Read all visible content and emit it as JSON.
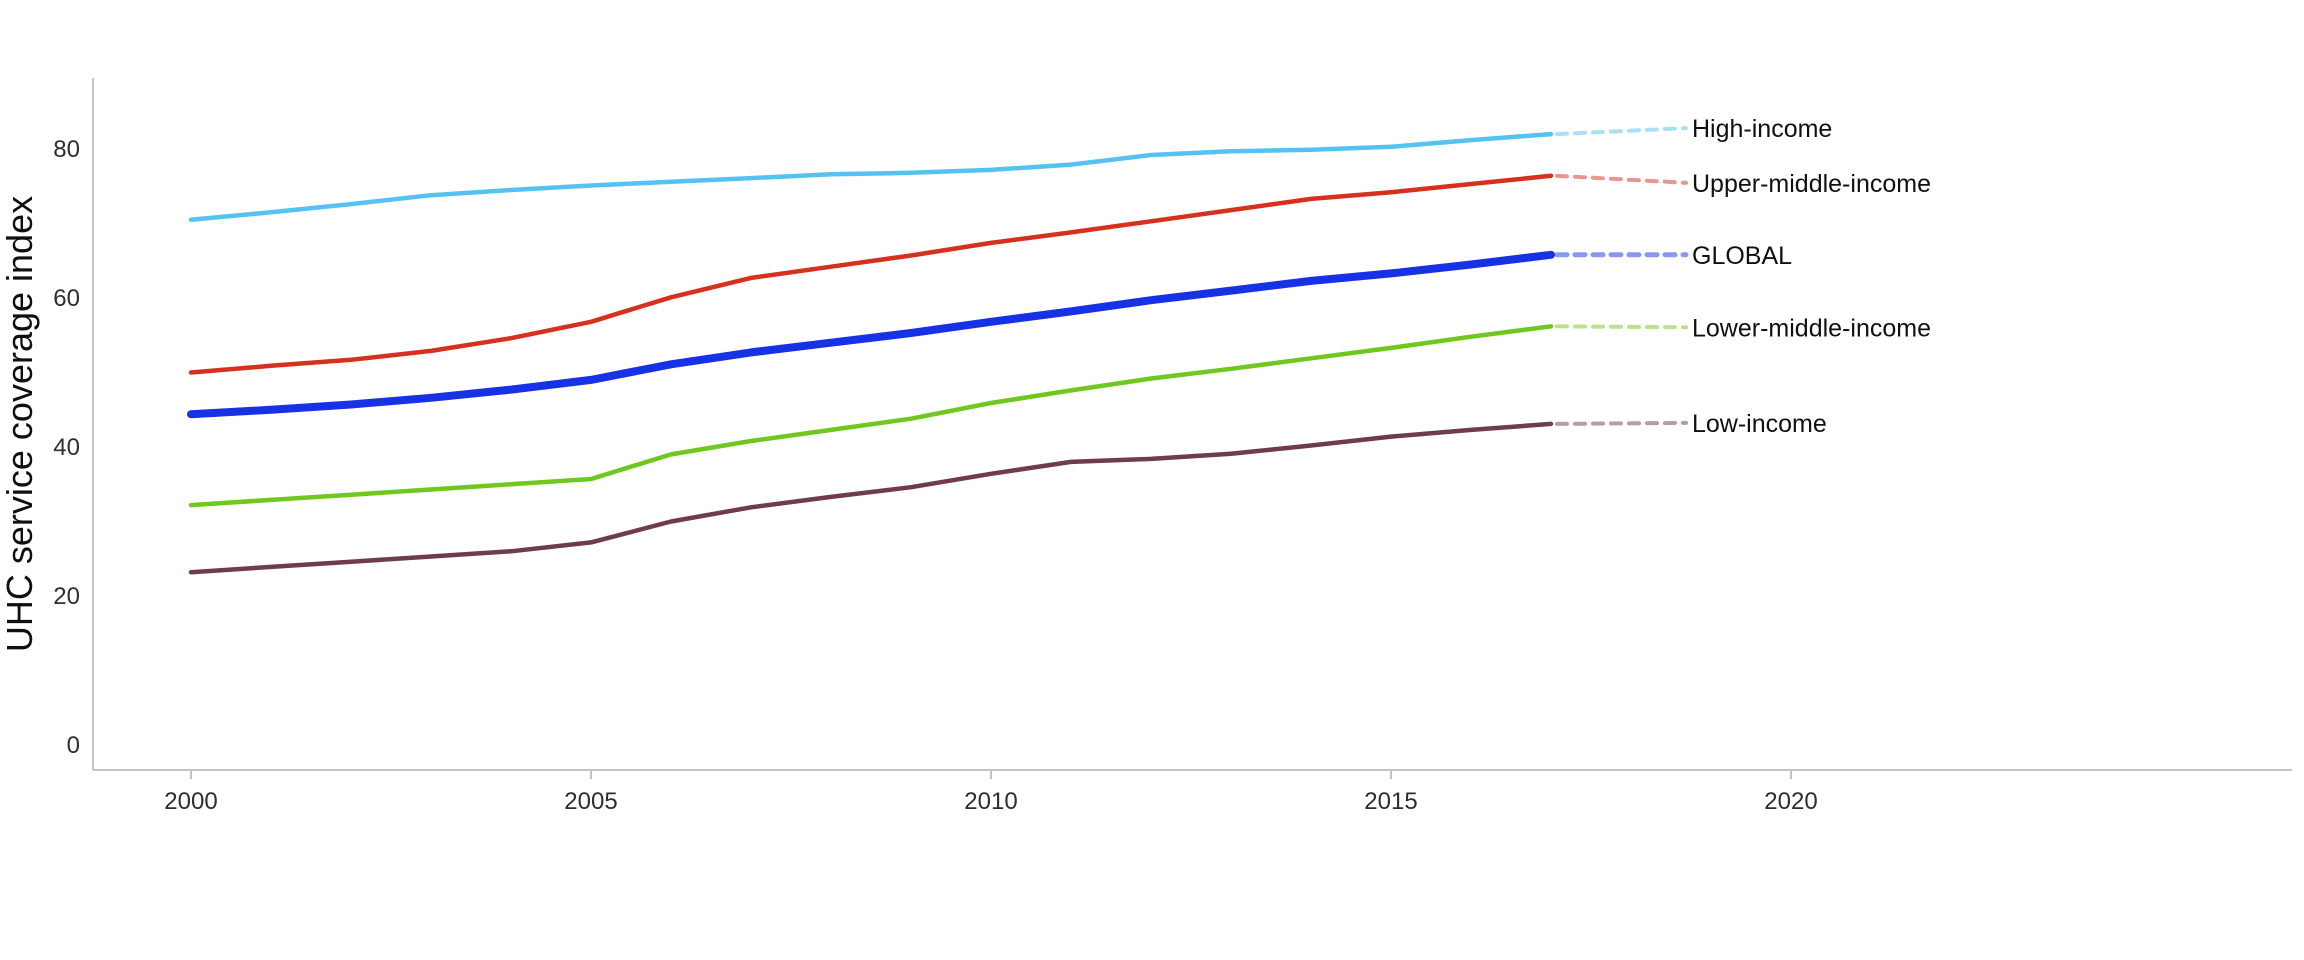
{
  "chart_data": {
    "type": "line",
    "title": "",
    "xlabel": "",
    "ylabel": "UHC service coverage index",
    "grid": false,
    "legend_position": "right-edge-direct-labels",
    "background_color": "#ffffff",
    "axis_color": "#c4c4c4",
    "tick_label_color": "#2e2e2e",
    "label_text_color": "#101010",
    "xlim": [
      1998.8,
      2026.2
    ],
    "ylim": [
      -3.4,
      89.5
    ],
    "x_ticks": [
      2000,
      2005,
      2010,
      2015,
      2020
    ],
    "y_ticks": [
      0,
      20,
      40,
      60,
      80
    ],
    "x": [
      2000,
      2001,
      2002,
      2003,
      2004,
      2005,
      2006,
      2007,
      2008,
      2009,
      2010,
      2011,
      2012,
      2013,
      2014,
      2015,
      2016,
      2017
    ],
    "series": [
      {
        "name": "High-income",
        "color": "#55c3f2",
        "line_width": 4.5,
        "values": [
          70.5,
          71.5,
          72.6,
          73.8,
          74.5,
          75.1,
          75.6,
          76.1,
          76.6,
          76.8,
          77.2,
          77.9,
          79.2,
          79.7,
          79.9,
          80.3,
          81.2,
          82.0
        ]
      },
      {
        "name": "Upper-middle-income",
        "color": "#d6301f",
        "line_width": 4.5,
        "values": [
          50.0,
          50.9,
          51.7,
          52.9,
          54.6,
          56.8,
          60.1,
          62.7,
          64.2,
          65.7,
          67.4,
          68.8,
          70.3,
          71.8,
          73.3,
          74.2,
          75.3,
          76.4
        ]
      },
      {
        "name": "GLOBAL",
        "color": "#1731e4",
        "line_width": 8,
        "values": [
          44.4,
          45.0,
          45.7,
          46.6,
          47.7,
          49.0,
          51.1,
          52.7,
          54.0,
          55.3,
          56.8,
          58.2,
          59.7,
          61.0,
          62.3,
          63.3,
          64.5,
          65.8
        ]
      },
      {
        "name": "Lower-middle-income",
        "color": "#70c81e",
        "line_width": 4.5,
        "values": [
          32.2,
          32.9,
          33.6,
          34.3,
          35.0,
          35.7,
          39.0,
          40.8,
          42.3,
          43.8,
          45.9,
          47.6,
          49.2,
          50.5,
          51.9,
          53.3,
          54.8,
          56.2
        ]
      },
      {
        "name": "Low-income",
        "color": "#6f3c4b",
        "line_width": 4.5,
        "values": [
          23.2,
          23.9,
          24.6,
          25.3,
          26.0,
          27.2,
          30.0,
          31.9,
          33.3,
          34.6,
          36.4,
          38.0,
          38.4,
          39.1,
          40.2,
          41.4,
          42.3,
          43.1
        ]
      }
    ]
  }
}
